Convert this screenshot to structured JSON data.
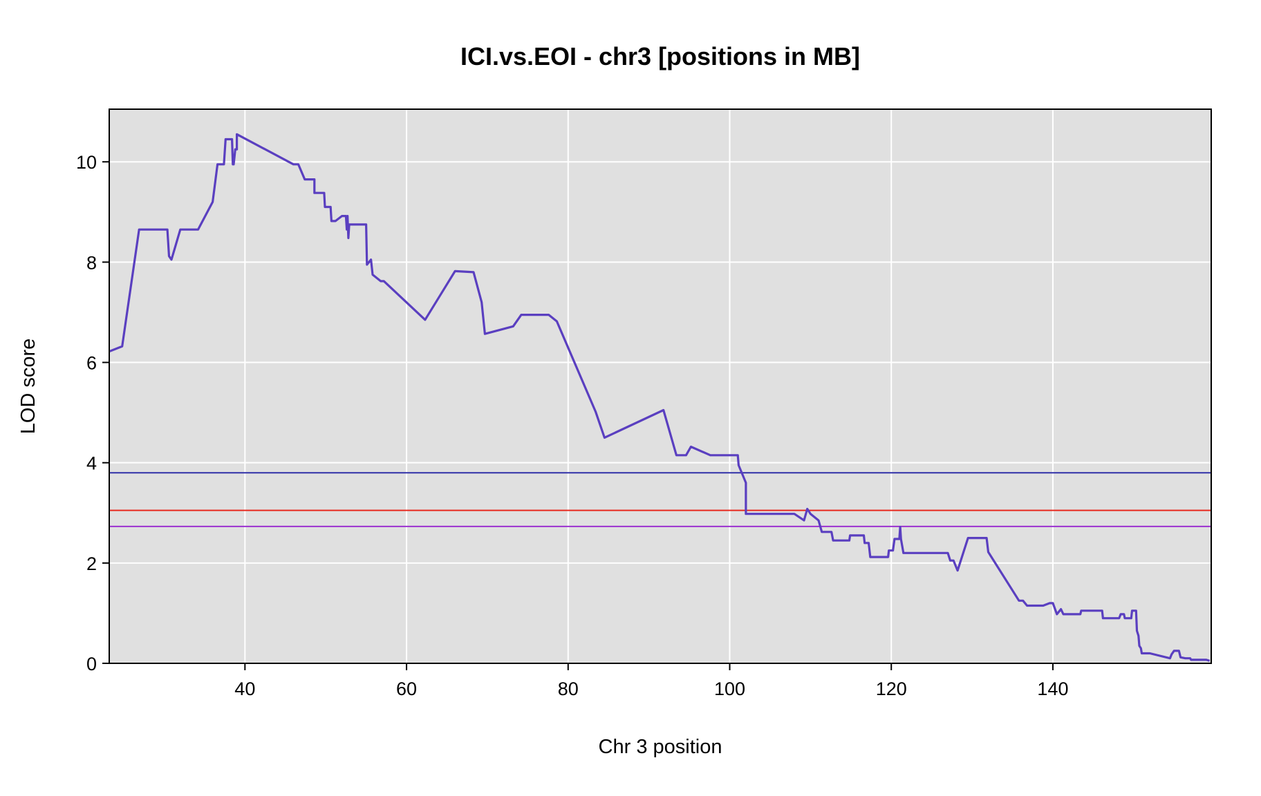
{
  "chart_data": {
    "type": "line",
    "title": "ICI.vs.EOI - chr3 [positions in MB]",
    "xlabel": "Chr 3 position",
    "ylabel": "LOD score",
    "xlim": [
      23.2,
      159.6
    ],
    "ylim": [
      0,
      11.05
    ],
    "xticks": [
      40,
      60,
      80,
      100,
      120,
      140
    ],
    "yticks": [
      0,
      2,
      4,
      6,
      8,
      10
    ],
    "grid": true,
    "colors": {
      "panel": "#e0e0e0",
      "grid": "#ffffff",
      "series": "#5a3fc0"
    },
    "thresholds": [
      {
        "value": 3.8,
        "color": "#2f2fa8"
      },
      {
        "value": 3.05,
        "color": "#e8281e"
      },
      {
        "value": 2.73,
        "color": "#9b30d0"
      }
    ],
    "series": [
      {
        "points": [
          [
            23.2,
            6.22
          ],
          [
            24.8,
            6.32
          ],
          [
            26.9,
            8.65
          ],
          [
            30.4,
            8.65
          ],
          [
            30.6,
            8.12
          ],
          [
            30.9,
            8.05
          ],
          [
            32.0,
            8.65
          ],
          [
            34.2,
            8.65
          ],
          [
            36.0,
            9.2
          ],
          [
            36.6,
            9.95
          ],
          [
            37.4,
            9.95
          ],
          [
            37.5,
            10.2
          ],
          [
            37.6,
            10.45
          ],
          [
            38.4,
            10.45
          ],
          [
            38.5,
            9.95
          ],
          [
            38.6,
            9.95
          ],
          [
            38.8,
            10.25
          ],
          [
            39.0,
            10.25
          ],
          [
            39.0,
            10.55
          ],
          [
            46.0,
            9.95
          ],
          [
            46.6,
            9.95
          ],
          [
            47.4,
            9.65
          ],
          [
            48.6,
            9.65
          ],
          [
            48.6,
            9.38
          ],
          [
            49.8,
            9.38
          ],
          [
            49.9,
            9.1
          ],
          [
            50.6,
            9.1
          ],
          [
            50.7,
            8.82
          ],
          [
            51.2,
            8.82
          ],
          [
            52.0,
            8.92
          ],
          [
            52.5,
            8.92
          ],
          [
            52.6,
            8.65
          ],
          [
            52.7,
            8.92
          ],
          [
            52.8,
            8.48
          ],
          [
            52.9,
            8.75
          ],
          [
            55.0,
            8.75
          ],
          [
            55.1,
            7.95
          ],
          [
            55.6,
            8.05
          ],
          [
            55.8,
            7.75
          ],
          [
            56.8,
            7.62
          ],
          [
            57.2,
            7.62
          ],
          [
            62.3,
            6.85
          ],
          [
            66.0,
            7.82
          ],
          [
            68.3,
            7.8
          ],
          [
            69.3,
            7.2
          ],
          [
            69.7,
            6.57
          ],
          [
            73.2,
            6.72
          ],
          [
            74.2,
            6.95
          ],
          [
            77.6,
            6.95
          ],
          [
            78.6,
            6.82
          ],
          [
            83.4,
            5.02
          ],
          [
            84.5,
            4.5
          ],
          [
            91.8,
            5.05
          ],
          [
            93.4,
            4.15
          ],
          [
            94.6,
            4.15
          ],
          [
            95.2,
            4.32
          ],
          [
            97.6,
            4.15
          ],
          [
            101.0,
            4.15
          ],
          [
            101.1,
            3.95
          ],
          [
            102.0,
            3.6
          ],
          [
            102.0,
            2.98
          ],
          [
            108.0,
            2.98
          ],
          [
            109.2,
            2.85
          ],
          [
            109.6,
            3.08
          ],
          [
            110.0,
            2.98
          ],
          [
            111.0,
            2.85
          ],
          [
            111.4,
            2.62
          ],
          [
            112.6,
            2.62
          ],
          [
            112.8,
            2.45
          ],
          [
            114.8,
            2.45
          ],
          [
            114.9,
            2.55
          ],
          [
            116.6,
            2.55
          ],
          [
            116.7,
            2.4
          ],
          [
            117.2,
            2.4
          ],
          [
            117.4,
            2.12
          ],
          [
            119.6,
            2.12
          ],
          [
            119.7,
            2.25
          ],
          [
            120.2,
            2.25
          ],
          [
            120.4,
            2.48
          ],
          [
            121.0,
            2.48
          ],
          [
            121.1,
            2.72
          ],
          [
            121.2,
            2.48
          ],
          [
            121.5,
            2.2
          ],
          [
            127.0,
            2.2
          ],
          [
            127.3,
            2.05
          ],
          [
            127.7,
            2.05
          ],
          [
            128.2,
            1.85
          ],
          [
            129.5,
            2.5
          ],
          [
            131.8,
            2.5
          ],
          [
            132.0,
            2.22
          ],
          [
            135.8,
            1.25
          ],
          [
            136.3,
            1.25
          ],
          [
            136.8,
            1.15
          ],
          [
            138.8,
            1.15
          ],
          [
            139.6,
            1.2
          ],
          [
            140.0,
            1.2
          ],
          [
            140.5,
            0.98
          ],
          [
            141.0,
            1.08
          ],
          [
            141.3,
            0.98
          ],
          [
            143.4,
            0.98
          ],
          [
            143.5,
            1.05
          ],
          [
            146.1,
            1.05
          ],
          [
            146.2,
            0.9
          ],
          [
            148.2,
            0.9
          ],
          [
            148.4,
            0.98
          ],
          [
            148.8,
            0.98
          ],
          [
            148.9,
            0.9
          ],
          [
            149.7,
            0.9
          ],
          [
            149.8,
            1.05
          ],
          [
            150.3,
            1.05
          ],
          [
            150.4,
            0.65
          ],
          [
            150.6,
            0.55
          ],
          [
            150.7,
            0.35
          ],
          [
            150.9,
            0.3
          ],
          [
            151.0,
            0.2
          ],
          [
            152.0,
            0.2
          ],
          [
            154.5,
            0.1
          ],
          [
            154.7,
            0.18
          ],
          [
            155.0,
            0.25
          ],
          [
            155.6,
            0.25
          ],
          [
            155.8,
            0.12
          ],
          [
            156.4,
            0.1
          ],
          [
            157.0,
            0.1
          ],
          [
            157.1,
            0.07
          ],
          [
            159.0,
            0.07
          ],
          [
            159.4,
            0.05
          ]
        ]
      }
    ]
  }
}
